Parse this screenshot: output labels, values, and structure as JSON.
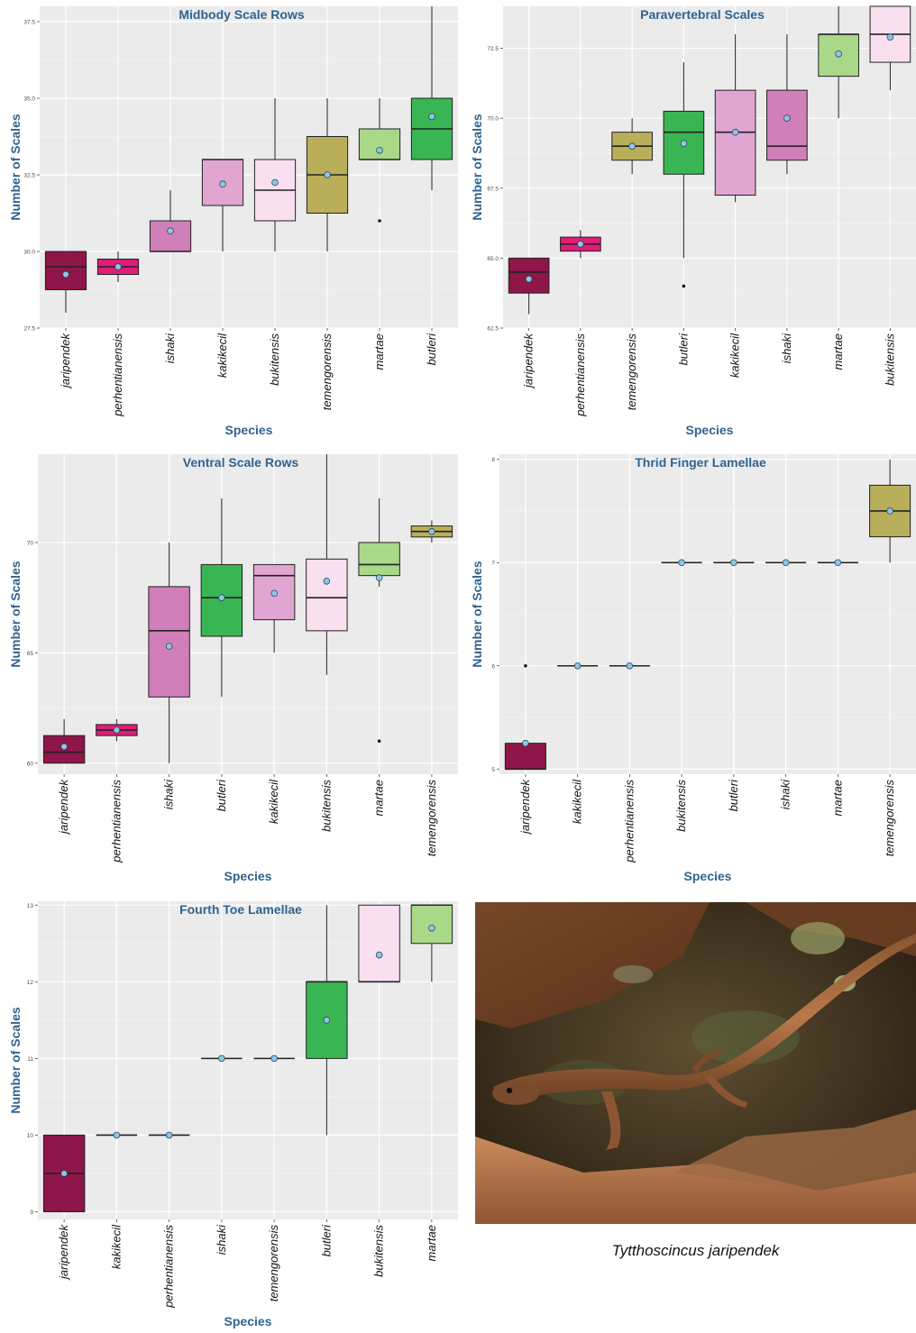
{
  "colors": {
    "jaripendek": "#8e1648",
    "perhentianensis": "#de1d77",
    "ishaki": "#d07fb9",
    "kakikecil": "#e0a6d1",
    "bukitensis": "#fadfee",
    "temengorensis": "#b9af5a",
    "martae": "#a9d889",
    "butleri": "#3ab553",
    "mean_point": "#8ec6e6",
    "title_text": "#2f6390",
    "panel_bg": "#ebebeb"
  },
  "chart_data": [
    {
      "type": "box",
      "title": "Midbody Scale Rows",
      "xlabel": "Species",
      "ylabel": "Number of Scales",
      "ylim": [
        27.5,
        38.0
      ],
      "yticks": [
        "27.5",
        "30.0",
        "32.5",
        "35.0",
        "37.5"
      ],
      "ytick_values": [
        27.5,
        30.0,
        32.5,
        35.0,
        37.5
      ],
      "grid": true,
      "series": [
        {
          "category": "jaripendek",
          "min": 28,
          "q1": 28.75,
          "median": 29.5,
          "q3": 30,
          "max": 30,
          "mean": 29.25,
          "outliers": []
        },
        {
          "category": "perhentianensis",
          "min": 29,
          "q1": 29.25,
          "median": 29.5,
          "q3": 29.75,
          "max": 30,
          "mean": 29.5,
          "outliers": []
        },
        {
          "category": "ishaki",
          "min": 30,
          "q1": 30,
          "median": 30,
          "q3": 31,
          "max": 32,
          "mean": 30.67,
          "outliers": []
        },
        {
          "category": "kakikecil",
          "min": 30,
          "q1": 31.5,
          "median": 33,
          "q3": 33,
          "max": 33,
          "mean": 32.2,
          "outliers": []
        },
        {
          "category": "bukitensis",
          "min": 30,
          "q1": 31,
          "median": 32,
          "q3": 33,
          "max": 35,
          "mean": 32.25,
          "outliers": []
        },
        {
          "category": "temengorensis",
          "min": 30,
          "q1": 31.25,
          "median": 32.5,
          "q3": 33.75,
          "max": 35,
          "mean": 32.5,
          "outliers": []
        },
        {
          "category": "martae",
          "min": 33,
          "q1": 33,
          "median": 33,
          "q3": 34,
          "max": 35,
          "mean": 33.3,
          "outliers": [
            31
          ]
        },
        {
          "category": "butleri",
          "min": 32,
          "q1": 33,
          "median": 34,
          "q3": 35,
          "max": 38,
          "mean": 34.4,
          "outliers": []
        }
      ]
    },
    {
      "type": "box",
      "title": "Paravertebral Scales",
      "xlabel": "Species",
      "ylabel": "Number of Scales",
      "ylim": [
        62.5,
        74.0
      ],
      "yticks": [
        "62.5",
        "65.0",
        "67.5",
        "70.0",
        "72.5"
      ],
      "ytick_values": [
        62.5,
        65.0,
        67.5,
        70.0,
        72.5
      ],
      "grid": true,
      "series": [
        {
          "category": "jaripendek",
          "min": 63,
          "q1": 63.75,
          "median": 64.5,
          "q3": 65,
          "max": 65,
          "mean": 64.25,
          "outliers": []
        },
        {
          "category": "perhentianensis",
          "min": 65,
          "q1": 65.25,
          "median": 65.5,
          "q3": 65.75,
          "max": 66,
          "mean": 65.5,
          "outliers": []
        },
        {
          "category": "temengorensis",
          "min": 68,
          "q1": 68.5,
          "median": 69,
          "q3": 69.5,
          "max": 70,
          "mean": 69,
          "outliers": []
        },
        {
          "category": "butleri",
          "min": 65,
          "q1": 68,
          "median": 69.5,
          "q3": 70.25,
          "max": 72,
          "mean": 69.1,
          "outliers": [
            64
          ]
        },
        {
          "category": "kakikecil",
          "min": 67,
          "q1": 67.25,
          "median": 69.5,
          "q3": 71,
          "max": 73,
          "mean": 69.5,
          "outliers": []
        },
        {
          "category": "ishaki",
          "min": 68,
          "q1": 68.5,
          "median": 69,
          "q3": 71,
          "max": 73,
          "mean": 70,
          "outliers": []
        },
        {
          "category": "martae",
          "min": 70,
          "q1": 71.5,
          "median": 73,
          "q3": 73,
          "max": 74,
          "mean": 72.3,
          "outliers": []
        },
        {
          "category": "bukitensis",
          "min": 71,
          "q1": 72,
          "median": 73,
          "q3": 74,
          "max": 74,
          "mean": 72.9,
          "outliers": []
        }
      ]
    },
    {
      "type": "box",
      "title": "Ventral Scale Rows",
      "xlabel": "Species",
      "ylabel": "Number of Scales",
      "ylim": [
        59.5,
        74.0
      ],
      "yticks": [
        "60",
        "65",
        "70"
      ],
      "ytick_values": [
        60,
        65,
        70
      ],
      "grid": true,
      "series": [
        {
          "category": "jaripendek",
          "min": 60,
          "q1": 60,
          "median": 60.5,
          "q3": 61.25,
          "max": 62,
          "mean": 60.75,
          "outliers": []
        },
        {
          "category": "perhentianensis",
          "min": 61,
          "q1": 61.25,
          "median": 61.5,
          "q3": 61.75,
          "max": 62,
          "mean": 61.5,
          "outliers": []
        },
        {
          "category": "ishaki",
          "min": 60,
          "q1": 63,
          "median": 66,
          "q3": 68,
          "max": 70,
          "mean": 65.3,
          "outliers": []
        },
        {
          "category": "butleri",
          "min": 63,
          "q1": 65.75,
          "median": 67.5,
          "q3": 69,
          "max": 72,
          "mean": 67.5,
          "outliers": []
        },
        {
          "category": "kakikecil",
          "min": 65,
          "q1": 66.5,
          "median": 68.5,
          "q3": 69,
          "max": 69,
          "mean": 67.7,
          "outliers": []
        },
        {
          "category": "bukitensis",
          "min": 64,
          "q1": 66,
          "median": 67.5,
          "q3": 69.25,
          "max": 74,
          "mean": 68.25,
          "outliers": []
        },
        {
          "category": "martae",
          "min": 68,
          "q1": 68.5,
          "median": 69,
          "q3": 70,
          "max": 72,
          "mean": 68.4,
          "outliers": [
            61
          ]
        },
        {
          "category": "temengorensis",
          "min": 70,
          "q1": 70.25,
          "median": 70.5,
          "q3": 70.75,
          "max": 71,
          "mean": 70.5,
          "outliers": []
        }
      ]
    },
    {
      "type": "box",
      "title": "Thrid Finger Lamellae",
      "xlabel": "Species",
      "ylabel": "Number of Scales",
      "ylim": [
        4.95,
        8.05
      ],
      "yticks": [
        "5",
        "6",
        "7",
        "8"
      ],
      "ytick_values": [
        5,
        6,
        7,
        8
      ],
      "grid": true,
      "series": [
        {
          "category": "jaripendek",
          "min": 5,
          "q1": 5,
          "median": 5,
          "q3": 5.25,
          "max": 5.25,
          "mean": 5.25,
          "outliers": [
            6
          ]
        },
        {
          "category": "kakikecil",
          "min": 6,
          "q1": 6,
          "median": 6,
          "q3": 6,
          "max": 6,
          "mean": 6,
          "outliers": []
        },
        {
          "category": "perhentianensis",
          "min": 6,
          "q1": 6,
          "median": 6,
          "q3": 6,
          "max": 6,
          "mean": 6,
          "outliers": []
        },
        {
          "category": "bukitensis",
          "min": 7,
          "q1": 7,
          "median": 7,
          "q3": 7,
          "max": 7,
          "mean": 7,
          "outliers": []
        },
        {
          "category": "butleri",
          "min": 7,
          "q1": 7,
          "median": 7,
          "q3": 7,
          "max": 7,
          "mean": 7,
          "outliers": []
        },
        {
          "category": "ishaki",
          "min": 7,
          "q1": 7,
          "median": 7,
          "q3": 7,
          "max": 7,
          "mean": 7,
          "outliers": []
        },
        {
          "category": "martae",
          "min": 7,
          "q1": 7,
          "median": 7,
          "q3": 7,
          "max": 7,
          "mean": 7,
          "outliers": []
        },
        {
          "category": "temengorensis",
          "min": 7,
          "q1": 7.25,
          "median": 7.5,
          "q3": 7.75,
          "max": 8,
          "mean": 7.5,
          "outliers": []
        }
      ]
    },
    {
      "type": "box",
      "title": "Fourth Toe Lamellae",
      "xlabel": "Species",
      "ylabel": "Number of Scales",
      "ylim": [
        8.9,
        13.05
      ],
      "yticks": [
        "9",
        "10",
        "11",
        "12",
        "13"
      ],
      "ytick_values": [
        9,
        10,
        11,
        12,
        13
      ],
      "grid": true,
      "series": [
        {
          "category": "jaripendek",
          "min": 9,
          "q1": 9,
          "median": 9.5,
          "q3": 10,
          "max": 10,
          "mean": 9.5,
          "outliers": []
        },
        {
          "category": "kakikecil",
          "min": 10,
          "q1": 10,
          "median": 10,
          "q3": 10,
          "max": 10,
          "mean": 10,
          "outliers": []
        },
        {
          "category": "perhentianensis",
          "min": 10,
          "q1": 10,
          "median": 10,
          "q3": 10,
          "max": 10,
          "mean": 10,
          "outliers": []
        },
        {
          "category": "ishaki",
          "min": 11,
          "q1": 11,
          "median": 11,
          "q3": 11,
          "max": 11,
          "mean": 11,
          "outliers": []
        },
        {
          "category": "temengorensis",
          "min": 11,
          "q1": 11,
          "median": 11,
          "q3": 11,
          "max": 11,
          "mean": 11,
          "outliers": []
        },
        {
          "category": "butleri",
          "min": 10,
          "q1": 11,
          "median": 12,
          "q3": 12,
          "max": 13,
          "mean": 11.5,
          "outliers": []
        },
        {
          "category": "bukitensis",
          "min": 12,
          "q1": 12,
          "median": 12,
          "q3": 13,
          "max": 13,
          "mean": 12.35,
          "outliers": []
        },
        {
          "category": "martae",
          "min": 12,
          "q1": 12.5,
          "median": 13,
          "q3": 13,
          "max": 13,
          "mean": 12.7,
          "outliers": []
        }
      ]
    }
  ],
  "photo": {
    "caption": "Tytthoscincus jaripendek"
  }
}
